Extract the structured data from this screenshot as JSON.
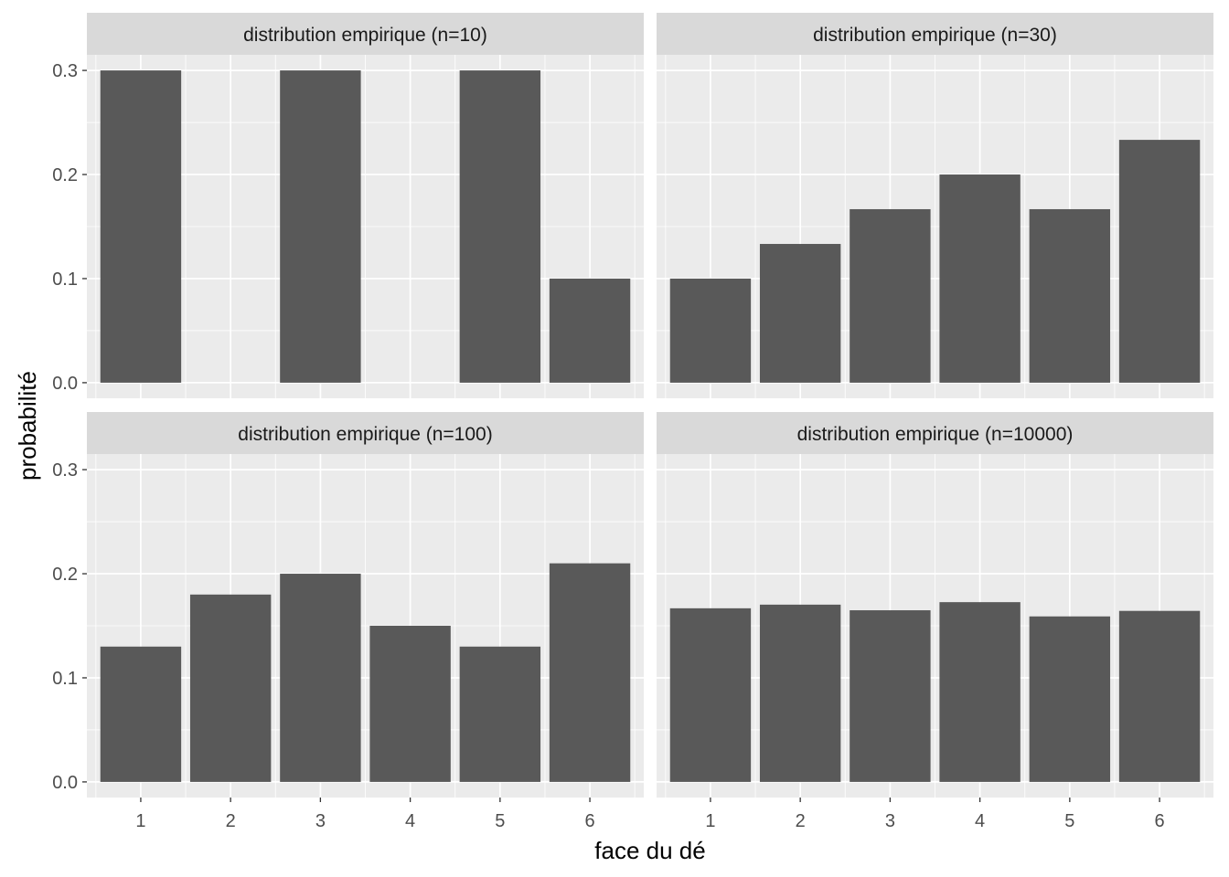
{
  "chart_data": {
    "type": "bar",
    "xlabel": "face du dé",
    "ylabel": "probabilité",
    "categories": [
      "1",
      "2",
      "3",
      "4",
      "5",
      "6"
    ],
    "y_ticks": [
      "0.0",
      "0.1",
      "0.2",
      "0.3"
    ],
    "ylim": [
      -0.015,
      0.315
    ],
    "grid": true,
    "bar_color": "#595959",
    "panel_background": "#ebebeb",
    "strip_background": "#d9d9d9",
    "panels": [
      {
        "title": "distribution empirique (n=10)",
        "values": [
          0.3,
          0.0,
          0.3,
          0.0,
          0.3,
          0.1
        ]
      },
      {
        "title": "distribution empirique (n=30)",
        "values": [
          0.1,
          0.1333,
          0.1667,
          0.2,
          0.1667,
          0.2333
        ]
      },
      {
        "title": "distribution empirique (n=100)",
        "values": [
          0.13,
          0.18,
          0.2,
          0.15,
          0.13,
          0.21
        ]
      },
      {
        "title": "distribution empirique (n=10000)",
        "values": [
          0.1668,
          0.1703,
          0.1649,
          0.1727,
          0.159,
          0.1643
        ]
      }
    ]
  }
}
